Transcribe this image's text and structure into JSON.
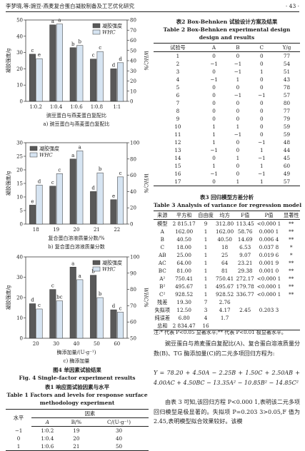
{
  "header": {
    "running_title": "李梦晓,等:豌豆-燕麦复合蛋白凝胶制备及工艺优化研究",
    "page_number": "· 43 ·"
  },
  "chart_data": [
    {
      "type": "bar",
      "title": "a) 豌豆蛋白与燕麦蛋白复配比",
      "x_label": "豌豆蛋白与燕麦蛋白复配比",
      "y_label": "凝胶强度/g",
      "y2_label": "WHC/%",
      "categories": [
        "1∶0.2",
        "1∶0.4",
        "1∶0.6",
        "1∶0.8",
        "1∶1"
      ],
      "series": [
        {
          "name": "凝胶强度",
          "color": "#595959",
          "values": [
            29,
            47,
            33,
            26,
            20
          ],
          "letters": [
            "c",
            "a",
            "b",
            "c",
            "d"
          ]
        },
        {
          "name": "WHC",
          "color": "#d6e4f2",
          "axis": "y2",
          "values": [
            42,
            76,
            55,
            49,
            38
          ],
          "letters": [
            "e",
            "a",
            "b",
            "c",
            "d"
          ]
        }
      ],
      "ylim": [
        0,
        50
      ],
      "yticks": [
        0,
        10,
        20,
        30,
        40,
        50
      ],
      "y2lim": [
        0,
        80
      ],
      "y2ticks": [
        0,
        10,
        20,
        30,
        40,
        50,
        60,
        70,
        80
      ],
      "legend": "upper right"
    },
    {
      "type": "bar",
      "title": "b) 复合蛋白溶液质量分数",
      "x_label": "复合蛋白溶液质量分数/%",
      "y_label": "凝胶强度/g",
      "y2_label": "WHC/%",
      "categories": [
        "18",
        "19",
        "20",
        "21",
        "22"
      ],
      "series": [
        {
          "name": "凝胶强度",
          "color": "#595959",
          "values": [
            7,
            14,
            24,
            12,
            9
          ],
          "letters": [
            "e",
            "c",
            "a",
            "d",
            "e"
          ]
        },
        {
          "name": "WHC",
          "color": "#d6e4f2",
          "axis": "y2",
          "values": [
            48,
            62,
            90,
            63,
            58
          ],
          "letters": [
            "d",
            "c",
            "a",
            "b",
            "c"
          ]
        }
      ],
      "ylim": [
        0,
        30
      ],
      "yticks": [
        0,
        5,
        10,
        15,
        20,
        25,
        30
      ],
      "y2lim": [
        0,
        100
      ],
      "y2ticks": [
        0,
        20,
        40,
        60,
        80,
        100
      ],
      "legend": "upper left"
    },
    {
      "type": "bar",
      "title": "c) 酶添加量",
      "x_label": "酶添加量/(U·g⁻¹)",
      "y_label": "凝胶强度/g",
      "y2_label": "WHC/%",
      "categories": [
        "20",
        "30",
        "40",
        "50",
        "60"
      ],
      "series": [
        {
          "name": "凝胶强度",
          "color": "#595959",
          "values": [
            17,
            24,
            35,
            31,
            14
          ],
          "letters": [
            "d",
            "c",
            "a",
            "b",
            "d"
          ]
        },
        {
          "name": "WHC",
          "color": "#d6e4f2",
          "axis": "y2",
          "values": [
            68,
            73,
            86,
            75,
            66
          ],
          "letters": [
            "c",
            "bc",
            "a",
            "b",
            "c"
          ]
        }
      ],
      "ylim": [
        0,
        40
      ],
      "yticks": [
        0,
        10,
        20,
        30,
        40
      ],
      "y2lim": [
        50,
        100
      ],
      "y2ticks": [
        50,
        60,
        70,
        80,
        90,
        100
      ],
      "legend": "upper right"
    }
  ],
  "figure": {
    "caption_cn": "图4 单因素试验结果",
    "caption_en": "Fig. 4 Single-factor experiment results"
  },
  "table1": {
    "caption_cn": "表1 响应面试验因素与水平",
    "caption_en_1": "Table 1 Factors and levels for response surface",
    "caption_en_2": "methodology experiment",
    "head_level": "水平",
    "head_factor": "因素",
    "factors": [
      "A",
      "B/%",
      "C/(U·g⁻¹)"
    ],
    "rows": [
      [
        "−1",
        "1∶0.2",
        "19",
        "30"
      ],
      [
        "0",
        "1∶0.4",
        "20",
        "40"
      ],
      [
        "1",
        "1∶0.6",
        "21",
        "50"
      ]
    ]
  },
  "table2": {
    "caption_cn": "表2 Box-Behnken 试验设计方案及结果",
    "caption_en_1": "Table 2 Box-Behnken experimental design",
    "caption_en_2": "design and results",
    "header": [
      "试验号",
      "A",
      "B",
      "C",
      "Y/g"
    ],
    "rows": [
      [
        "1",
        "0",
        "0",
        "0",
        "77"
      ],
      [
        "2",
        "−1",
        "−1",
        "0",
        "54"
      ],
      [
        "3",
        "0",
        "−1",
        "1",
        "51"
      ],
      [
        "4",
        "−1",
        "1",
        "0",
        "43"
      ],
      [
        "5",
        "0",
        "0",
        "0",
        "78"
      ],
      [
        "6",
        "0",
        "−1",
        "−1",
        "57"
      ],
      [
        "7",
        "0",
        "0",
        "0",
        "80"
      ],
      [
        "8",
        "0",
        "0",
        "0",
        "77"
      ],
      [
        "9",
        "0",
        "0",
        "0",
        "79"
      ],
      [
        "10",
        "1",
        "1",
        "0",
        "59"
      ],
      [
        "11",
        "1",
        "−1",
        "0",
        "59"
      ],
      [
        "12",
        "1",
        "0",
        "−1",
        "48"
      ],
      [
        "13",
        "−1",
        "0",
        "1",
        "44"
      ],
      [
        "14",
        "0",
        "1",
        "−1",
        "45"
      ],
      [
        "15",
        "1",
        "0",
        "1",
        "60"
      ],
      [
        "16",
        "−1",
        "0",
        "−1",
        "49"
      ],
      [
        "17",
        "0",
        "1",
        "1",
        "57"
      ]
    ]
  },
  "table3": {
    "caption_cn": "表3 回归模型方差分析",
    "caption_en": "Table 3 Analysis of variance for regression model",
    "header": [
      "来源",
      "平方和",
      "自由度",
      "均方",
      "F值",
      "P值",
      "显著性"
    ],
    "rows": [
      [
        "模型",
        "2 815.17",
        "9",
        "312.80",
        "113.45",
        "<0.000 1",
        "**"
      ],
      [
        "A",
        "162.00",
        "1",
        "162.00",
        "58.76",
        "0.000 1",
        "**"
      ],
      [
        "B",
        "40.50",
        "1",
        "40.50",
        "14.69",
        "0.006 4",
        "**"
      ],
      [
        "C",
        "18.00",
        "1",
        "18",
        "6.53",
        "0.037 8",
        "*"
      ],
      [
        "AB",
        "25.00",
        "1",
        "25",
        "9.07",
        "0.019 6",
        "*"
      ],
      [
        "AC",
        "64.00",
        "1",
        "64",
        "23.21",
        "0.001 9",
        "**"
      ],
      [
        "BC",
        "81.00",
        "1",
        "81",
        "29.38",
        "0.001 0",
        "**"
      ],
      [
        "A²",
        "750.41",
        "1",
        "750.41",
        "272.17",
        "<0.000 1",
        "**"
      ],
      [
        "B²",
        "495.67",
        "1",
        "495.67",
        "179.78",
        "<0.000 1",
        "**"
      ],
      [
        "C²",
        "928.52",
        "1",
        "928.52",
        "336.77",
        "<0.000 1",
        "**"
      ],
      [
        "残差",
        "19.30",
        "7",
        "2.76"
      ],
      [
        "失拟项",
        "12.50",
        "3",
        "4.17",
        "2.45",
        "0.203 3"
      ],
      [
        "纯误差",
        "6.80",
        "4",
        "1.7"
      ],
      [
        "总和",
        "2 834.47",
        "16"
      ]
    ],
    "note": "注:* 代表 P<0.05 显著水平;** 代表 P<0.01 极显著水平。"
  },
  "body": {
    "paragraph_1": "豌豆蛋白与燕麦蛋白复配比(A)、复合蛋白溶液质量分数(B)、TG 酶添加量(C)的二元多项回归方程为:",
    "equation": "Y = 78.20 + 4.50A − 2.25B + 1.50C + 2.50AB + 4.00AC + 4.50BC − 13.35A² − 10.85B² − 14.85C²",
    "paragraph_2": "由表 3 可知,该回归方程 P<0.000 1,表明该二元多项回归模型是极显著的。失拟项 P=0.203 3>0.05,F 值为 2.45,表明模型拟合效果较好。该模"
  }
}
